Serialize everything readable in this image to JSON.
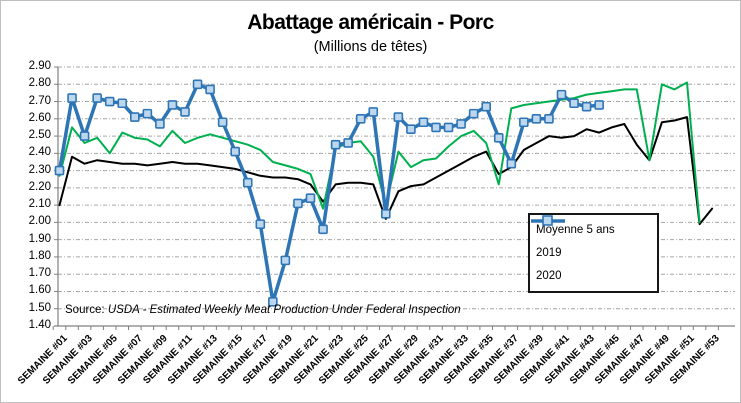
{
  "title": "Abattage américain - Porc",
  "subtitle": "(Millions de têtes)",
  "source": {
    "prefix": "Source:",
    "text": "USDA - Estimated Weekly Meat Production Under Federal Inspection"
  },
  "colors": {
    "avg": "#000000",
    "y2019": "#00B050",
    "y2020": "#2E75B6",
    "marker_fill": "#BDD7EE",
    "gridline": "#A6A6A6",
    "axis": "#808080"
  },
  "legend": [
    {
      "label": "Moyenne 5 ans",
      "series": "avg"
    },
    {
      "label": "2019",
      "series": "y2019"
    },
    {
      "label": "2020",
      "series": "y2020"
    }
  ],
  "chart_data": {
    "type": "line",
    "title": "Abattage américain - Porc",
    "subtitle": "(Millions de têtes)",
    "ylim": [
      1.4,
      2.9
    ],
    "y_ticks": [
      "2.90",
      "2.80",
      "2.70",
      "2.60",
      "2.50",
      "2.40",
      "2.30",
      "2.20",
      "2.10",
      "2.00",
      "1.90",
      "1.80",
      "1.70",
      "1.60",
      "1.50",
      "1.40"
    ],
    "weeks": 53,
    "x_tick_labels": [
      "SEMAINE #01",
      "SEMAINE #03",
      "SEMAINE #05",
      "SEMAINE #07",
      "SEMAINE #09",
      "SEMAINE #11",
      "SEMAINE #13",
      "SEMAINE #15",
      "SEMAINE #17",
      "SEMAINE #19",
      "SEMAINE #21",
      "SEMAINE #23",
      "SEMAINE #25",
      "SEMAINE #27",
      "SEMAINE #29",
      "SEMAINE #31",
      "SEMAINE #33",
      "SEMAINE #35",
      "SEMAINE #37",
      "SEMAINE #39",
      "SEMAINE #41",
      "SEMAINE #43",
      "SEMAINE #45",
      "SEMAINE #47",
      "SEMAINE #49",
      "SEMAINE #51",
      "SEMAINE #53"
    ],
    "grid": true,
    "legend_position": "inside-right",
    "series": [
      {
        "name": "Moyenne 5 ans",
        "key": "avg",
        "marker": "none",
        "values": [
          2.1,
          2.38,
          2.34,
          2.36,
          2.35,
          2.34,
          2.34,
          2.33,
          2.34,
          2.35,
          2.34,
          2.34,
          2.33,
          2.32,
          2.31,
          2.29,
          2.27,
          2.26,
          2.26,
          2.25,
          2.22,
          2.12,
          2.22,
          2.23,
          2.23,
          2.22,
          2.02,
          2.18,
          2.21,
          2.22,
          2.26,
          2.3,
          2.34,
          2.38,
          2.41,
          2.28,
          2.32,
          2.42,
          2.46,
          2.5,
          2.49,
          2.5,
          2.54,
          2.52,
          2.55,
          2.57,
          2.45,
          2.36,
          2.58,
          2.59,
          2.61,
          1.99,
          2.08
        ]
      },
      {
        "name": "2019",
        "key": "y2019",
        "marker": "none",
        "values": [
          2.27,
          2.55,
          2.46,
          2.49,
          2.4,
          2.52,
          2.49,
          2.48,
          2.44,
          2.53,
          2.46,
          2.49,
          2.51,
          2.49,
          2.47,
          2.45,
          2.42,
          2.35,
          2.33,
          2.31,
          2.28,
          2.08,
          2.43,
          2.46,
          2.47,
          2.38,
          2.1,
          2.41,
          2.32,
          2.36,
          2.37,
          2.44,
          2.5,
          2.53,
          2.46,
          2.22,
          2.66,
          2.68,
          2.69,
          2.7,
          2.71,
          2.72,
          2.74,
          2.75,
          2.76,
          2.77,
          2.77,
          2.36,
          2.8,
          2.77,
          2.81,
          2.0,
          null
        ]
      },
      {
        "name": "2020",
        "key": "y2020",
        "marker": "square",
        "values": [
          2.3,
          2.72,
          2.5,
          2.72,
          2.7,
          2.69,
          2.61,
          2.63,
          2.57,
          2.68,
          2.64,
          2.8,
          2.77,
          2.58,
          2.41,
          2.23,
          1.99,
          1.54,
          1.78,
          2.11,
          2.14,
          1.96,
          2.45,
          2.46,
          2.6,
          2.64,
          2.05,
          2.61,
          2.54,
          2.58,
          2.55,
          2.55,
          2.57,
          2.63,
          2.67,
          2.49,
          2.34,
          2.58,
          2.6,
          2.6,
          2.74,
          2.69,
          2.67,
          2.68,
          null,
          null,
          null,
          null,
          null,
          null,
          null,
          null,
          null
        ]
      }
    ]
  }
}
